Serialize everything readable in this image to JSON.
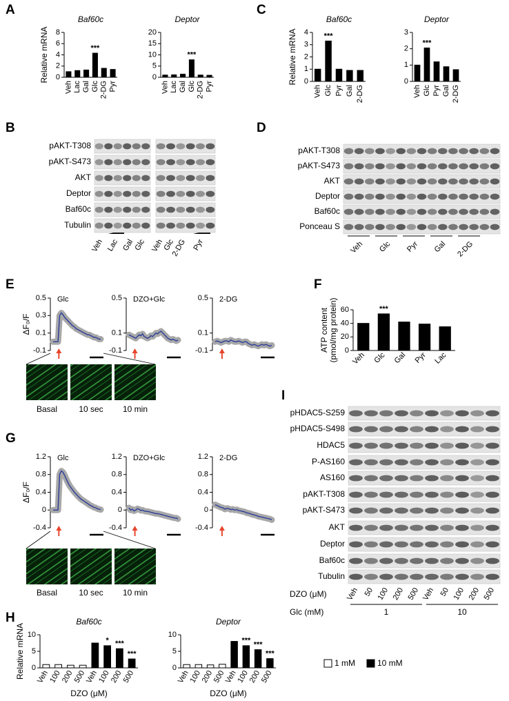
{
  "panels": [
    "A",
    "B",
    "C",
    "D",
    "E",
    "F",
    "G",
    "H",
    "I"
  ],
  "chart_data": [
    {
      "type": "bar",
      "title": "Baf60c",
      "ylabel": [
        "Relative mRNA"
      ],
      "categories": [
        "Veh",
        "Lac",
        "Gal",
        "Glc",
        "2-DG",
        "Pyr"
      ],
      "values": [
        1,
        1.2,
        1.3,
        4.3,
        1.6,
        1.4
      ],
      "annotations": [
        null,
        null,
        null,
        "***",
        null,
        null
      ],
      "color": "#000000",
      "ylim": [
        0,
        8
      ],
      "yticks": [
        0,
        2,
        4,
        6,
        8
      ]
    },
    {
      "type": "bar",
      "title": "Deptor",
      "categories": [
        "Veh",
        "Lac",
        "Gal",
        "Glc",
        "2-DG",
        "Pyr"
      ],
      "values": [
        1,
        1.1,
        1.4,
        7.8,
        1,
        0.9
      ],
      "annotations": [
        null,
        null,
        null,
        "***",
        null,
        null
      ],
      "color": "#000000",
      "ylim": [
        0,
        20
      ],
      "yticks": [
        0,
        5,
        10,
        15,
        20
      ]
    },
    {
      "type": "bar",
      "title": "Baf60c",
      "ylabel": [
        "Relative mRNA"
      ],
      "categories": [
        "Veh",
        "Glc",
        "Pyr",
        "Gal",
        "2-DG"
      ],
      "values": [
        1,
        3.3,
        1,
        0.9,
        0.9
      ],
      "annotations": [
        null,
        "***",
        null,
        null,
        null
      ],
      "color": "#000000",
      "ylim": [
        0,
        4
      ],
      "yticks": [
        0,
        1,
        2,
        3,
        4
      ]
    },
    {
      "type": "bar",
      "title": "Deptor",
      "categories": [
        "Veh",
        "Glc",
        "Pyr",
        "Gal",
        "2-DG"
      ],
      "values": [
        1,
        2.05,
        1.2,
        0.9,
        0.72
      ],
      "annotations": [
        null,
        "***",
        null,
        null,
        null
      ],
      "color": "#000000",
      "ylim": [
        0,
        3
      ],
      "yticks": [
        0,
        1,
        2,
        3
      ]
    },
    {
      "type": "bar",
      "ylabel": [
        "ATP content",
        "(pmol/mg protein)"
      ],
      "categories": [
        "Veh",
        "Glc",
        "Gal",
        "Pyr",
        "Lac"
      ],
      "values": [
        40,
        54,
        42,
        39,
        35
      ],
      "annotations": [
        null,
        "***",
        null,
        null,
        null
      ],
      "color": "#000000",
      "ylim": [
        0,
        60
      ],
      "yticks": [
        0,
        20,
        40,
        60
      ]
    },
    {
      "type": "line",
      "title": "Glc",
      "ylabel": [
        "ΔF₀/F"
      ],
      "color": "#2b3d9a",
      "values": [
        0,
        0,
        0,
        0,
        0.3,
        0.33,
        0.31,
        0.28,
        0.26,
        0.24,
        0.22,
        0.2,
        0.18,
        0.17,
        0.15,
        0.14,
        0.13,
        0.12,
        0.11,
        0.1,
        0.09,
        0.08,
        0.08,
        0.07,
        0.06,
        0.05,
        0.05,
        0.04,
        0.03,
        0.03
      ],
      "ylim": [
        -0.1,
        0.5
      ],
      "yticks": [
        -0.1,
        0.1,
        0.3,
        0.5
      ]
    },
    {
      "type": "line",
      "title": "DZO+Glc",
      "color": "#2b3d9a",
      "values": [
        0.08,
        0.07,
        0.06,
        0.05,
        0.04,
        0.06,
        0.08,
        0.07,
        0.09,
        0.06,
        0.05,
        0.04,
        0.05,
        0.07,
        0.06,
        0.08,
        0.1,
        0.09,
        0.11,
        0.12,
        0.1,
        0.08,
        0.06,
        0.04,
        0.03,
        0.02,
        0.03,
        0.02,
        0.01,
        0.02
      ],
      "ylim": [
        -0.1,
        0.5
      ],
      "yticks": [
        -0.1,
        0.1,
        0.5
      ]
    },
    {
      "type": "line",
      "title": "2-DG",
      "color": "#2b3d9a",
      "values": [
        0,
        0.01,
        0,
        -0.01,
        0,
        0.01,
        0.01,
        0,
        0.02,
        0.01,
        0,
        0,
        0.01,
        0,
        -0.01,
        0,
        0,
        -0.02,
        -0.03,
        -0.04,
        -0.03,
        -0.04,
        -0.05,
        -0.04,
        -0.03,
        -0.04,
        -0.03,
        -0.04,
        -0.05,
        -0.04
      ],
      "ylim": [
        -0.1,
        0.5
      ],
      "yticks": [
        -0.1,
        0.1,
        0.5
      ]
    },
    {
      "type": "line",
      "title": "Glc",
      "ylabel": [
        "ΔF₀/F"
      ],
      "color": "#2b3d9a",
      "values": [
        0,
        0,
        0,
        0,
        0.8,
        0.88,
        0.85,
        0.78,
        0.7,
        0.62,
        0.55,
        0.5,
        0.45,
        0.4,
        0.36,
        0.32,
        0.28,
        0.25,
        0.22,
        0.2,
        0.17,
        0.15,
        0.12,
        0.1,
        0.08,
        0.06,
        0.05,
        0.03,
        0.02,
        0.01
      ],
      "ylim": [
        -0.4,
        1.2
      ],
      "yticks": [
        -0.4,
        0,
        0.4,
        0.8,
        1.2
      ]
    },
    {
      "type": "line",
      "title": "DZO+Glc",
      "color": "#2b3d9a",
      "values": [
        0.05,
        0,
        0.02,
        -0.02,
        0,
        0.03,
        0.02,
        -0.01,
        0,
        -0.02,
        -0.03,
        -0.03,
        -0.04,
        -0.05,
        -0.06,
        -0.07,
        -0.08,
        -0.08,
        -0.09,
        -0.1,
        -0.11,
        -0.12,
        -0.13,
        -0.14,
        -0.15,
        -0.16,
        -0.17,
        -0.18,
        -0.18,
        -0.2
      ],
      "ylim": [
        -0.4,
        1.2
      ],
      "yticks": [
        -0.4,
        0,
        0.4,
        0.8,
        1.2
      ]
    },
    {
      "type": "line",
      "title": "2-DG",
      "color": "#2b3d9a",
      "values": [
        0.12,
        0.1,
        0.08,
        0.06,
        0.05,
        0.02,
        0.04,
        0.03,
        0.01,
        0.02,
        0,
        0.01,
        -0.01,
        -0.02,
        -0.03,
        -0.04,
        -0.06,
        -0.07,
        -0.08,
        -0.1,
        -0.11,
        -0.12,
        -0.14,
        -0.15,
        -0.16,
        -0.17,
        -0.18,
        -0.19,
        -0.2,
        -0.22
      ],
      "ylim": [
        -0.4,
        1.2
      ],
      "yticks": [
        -0.4,
        0,
        0.4,
        0.8,
        1.2
      ]
    },
    {
      "type": "bar",
      "title": "Baf60c",
      "ylabel": [
        "Relative mRNA"
      ],
      "xlabel": "DZO (μM)",
      "categories": [
        "Veh",
        "100",
        "200",
        "500",
        "Veh",
        "100",
        "200",
        "500"
      ],
      "series": [
        {
          "color": "#ffffff",
          "values": [
            1,
            1,
            0.8,
            0.8,
            null,
            null,
            null,
            null
          ]
        },
        {
          "color": "#000000",
          "values": [
            null,
            null,
            null,
            null,
            7.5,
            6.7,
            5.8,
            2.7
          ],
          "annotations": [
            null,
            null,
            null,
            null,
            null,
            "*",
            "***",
            "***"
          ]
        }
      ],
      "ylim": [
        0,
        10
      ],
      "yticks": [
        0,
        5,
        10
      ]
    },
    {
      "type": "bar",
      "title": "Deptor",
      "xlabel": "DZO (μM)",
      "categories": [
        "Veh",
        "100",
        "200",
        "500",
        "Veh",
        "100",
        "200",
        "500"
      ],
      "series": [
        {
          "name": "1 mM",
          "color": "#ffffff",
          "values": [
            1,
            1,
            0.9,
            1.1,
            null,
            null,
            null,
            null
          ]
        },
        {
          "name": "10 mM",
          "color": "#000000",
          "values": [
            null,
            null,
            null,
            null,
            8,
            6.7,
            5.5,
            2.8
          ],
          "annotations": [
            null,
            null,
            null,
            null,
            null,
            "***",
            "***",
            "***"
          ]
        }
      ],
      "ylim": [
        0,
        10
      ],
      "yticks": [
        0,
        5,
        10
      ],
      "legend": true
    }
  ],
  "blots": {
    "B": {
      "rows": [
        "pAKT-T308",
        "pAKT-S473",
        "AKT",
        "Deptor",
        "Baf60c",
        "Tubulin"
      ],
      "lanes": [
        "Veh",
        "Lac",
        "Gal",
        "Glc",
        "Veh",
        "Glc",
        "2-DG",
        "Pyr"
      ]
    },
    "D": {
      "rows": [
        "pAKT-T308",
        "pAKT-S473",
        "AKT",
        "Deptor",
        "Baf60c",
        "Ponceau S"
      ],
      "lanes": [
        "Veh",
        "Glc",
        "Pyr",
        "Gal",
        "2-DG"
      ]
    },
    "I": {
      "rows": [
        "pHDAC5-S259",
        "pHDAC5-S498",
        "HDAC5",
        "P-AS160",
        "AS160",
        "pAKT-T308",
        "pAKT-S473",
        "AKT",
        "Deptor",
        "Baf60c",
        "Tubulin"
      ],
      "dzo_label": "DZO (μM)",
      "dzo": [
        "Veh",
        "50",
        "100",
        "200",
        "500",
        "Veh",
        "50",
        "100",
        "200",
        "500"
      ],
      "glc_label": "Glc (mM)",
      "glc": [
        "1",
        "10"
      ]
    }
  },
  "images": {
    "E": [
      "Basal",
      "10 sec",
      "10 min"
    ],
    "G": [
      "Basal",
      "10 sec",
      "10 min"
    ]
  }
}
